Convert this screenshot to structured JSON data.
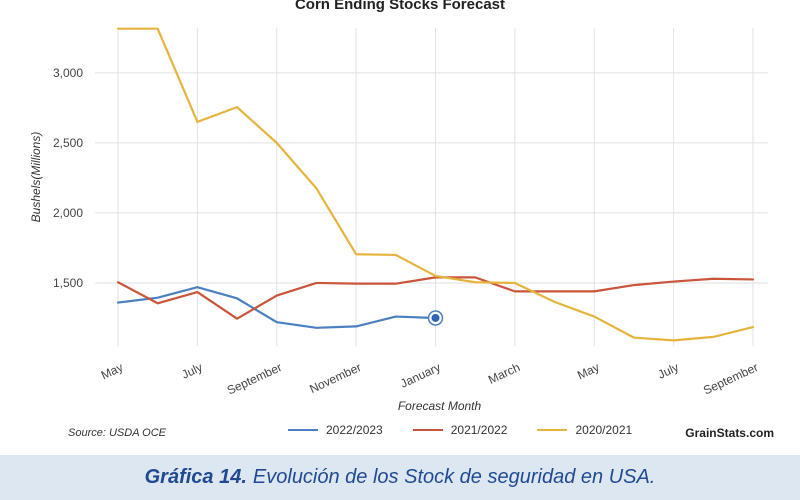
{
  "chart_data": {
    "type": "line",
    "title": "Corn Ending Stocks Forecast",
    "xlabel": "Forecast Month",
    "ylabel": "Bushels(Millions)",
    "ylim": [
      1050,
      3320
    ],
    "yticks": [
      1500,
      2000,
      2500,
      3000
    ],
    "ytick_labels": [
      "1,500",
      "2,000",
      "2,500",
      "3,000"
    ],
    "x": [
      "2020-05",
      "2020-06",
      "2020-07",
      "2020-08",
      "2020-09",
      "2020-10",
      "2020-11",
      "2020-12",
      "2021-01",
      "2021-02",
      "2021-03",
      "2021-04",
      "2021-05",
      "2021-06",
      "2021-07",
      "2021-08",
      "2021-09"
    ],
    "xtick_labels": [
      "May",
      "July",
      "September",
      "November",
      "January",
      "March",
      "May",
      "July",
      "September"
    ],
    "grid": true,
    "legend_position": "bottom",
    "series": [
      {
        "name": "2022/2023",
        "color": "#4a7fc1",
        "values": [
          1360,
          1395,
          1470,
          1390,
          1220,
          1180,
          1190,
          1260,
          1250,
          null,
          null,
          null,
          null,
          null,
          null,
          null,
          null
        ]
      },
      {
        "name": "2021/2022",
        "color": "#c9553a",
        "values": [
          1505,
          1355,
          1435,
          1245,
          1410,
          1500,
          1495,
          1495,
          1540,
          1540,
          1440,
          1440,
          1440,
          1485,
          1510,
          1530,
          1525
        ]
      },
      {
        "name": "2020/2021",
        "color": "#e6b43c",
        "values": [
          3315,
          3315,
          2650,
          2755,
          2500,
          2175,
          1705,
          1700,
          1550,
          1505,
          1500,
          1365,
          1260,
          1110,
          1090,
          1115,
          1185
        ]
      }
    ],
    "last_point_marker_series": "2022/2023"
  },
  "footer": {
    "source": "Source: USDA OCE",
    "brand": "GrainStats.com"
  },
  "caption": {
    "label": "Gráfica 14.",
    "text": "Evolución de los Stock de seguridad en USA."
  }
}
